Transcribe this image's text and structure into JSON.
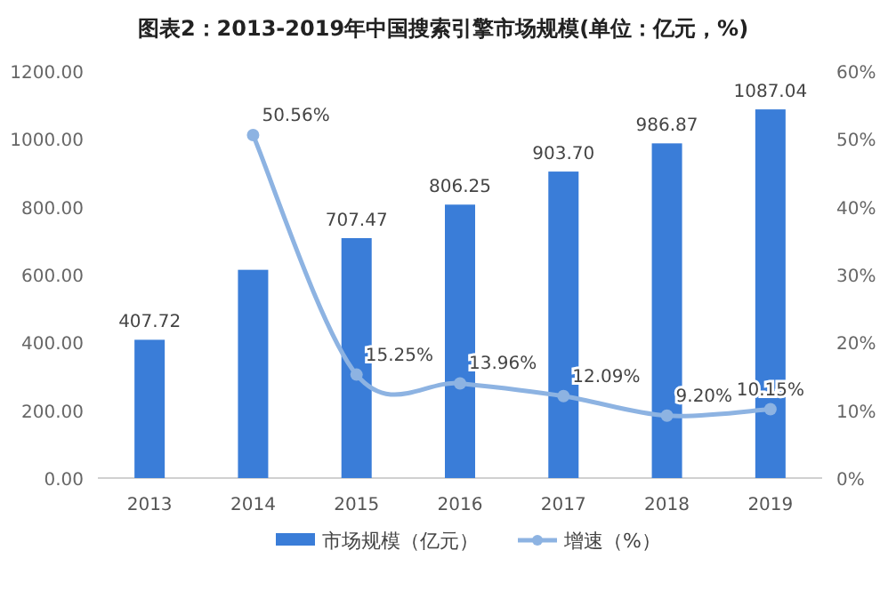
{
  "chart_data": {
    "type": "bar",
    "title": "图表2：2013-2019年中国搜索引擎市场规模(单位：亿元，%)",
    "categories": [
      "2013",
      "2014",
      "2015",
      "2016",
      "2017",
      "2018",
      "2019"
    ],
    "series": [
      {
        "name": "市场规模（亿元）",
        "color": "#3a7dd8",
        "values": [
          407.72,
          614,
          707.47,
          806.25,
          903.7,
          986.87,
          1087.04
        ],
        "value_labels": [
          "407.72",
          null,
          "707.47",
          "806.25",
          "903.70",
          "986.87",
          "1087.04"
        ]
      },
      {
        "name": "增速（%）",
        "type": "line",
        "axis": "y2",
        "color": "#8db3e2",
        "marker": "circle",
        "values": [
          null,
          50.56,
          15.25,
          13.96,
          12.09,
          9.2,
          10.15
        ],
        "value_labels": [
          null,
          "50.56%",
          "15.25%",
          "13.96%",
          "12.09%",
          "9.20%",
          "10.15%"
        ]
      }
    ],
    "ylim": [
      0,
      1200
    ],
    "yticks": [
      {
        "value": 0,
        "label": "0.00"
      },
      {
        "value": 200,
        "label": "200.00"
      },
      {
        "value": 400,
        "label": "400.00"
      },
      {
        "value": 600,
        "label": "600.00"
      },
      {
        "value": 800,
        "label": "800.00"
      },
      {
        "value": 1000,
        "label": "1000.00"
      },
      {
        "value": 1200,
        "label": "1200.00"
      }
    ],
    "y2lim": [
      0,
      60
    ],
    "y2ticks": [
      {
        "value": 0,
        "label": "0%"
      },
      {
        "value": 10,
        "label": "10%"
      },
      {
        "value": 20,
        "label": "20%"
      },
      {
        "value": 30,
        "label": "30%"
      },
      {
        "value": 40,
        "label": "40%"
      },
      {
        "value": 50,
        "label": "50%"
      },
      {
        "value": 60,
        "label": "60%"
      }
    ],
    "grid": false,
    "legend": "bottom"
  }
}
